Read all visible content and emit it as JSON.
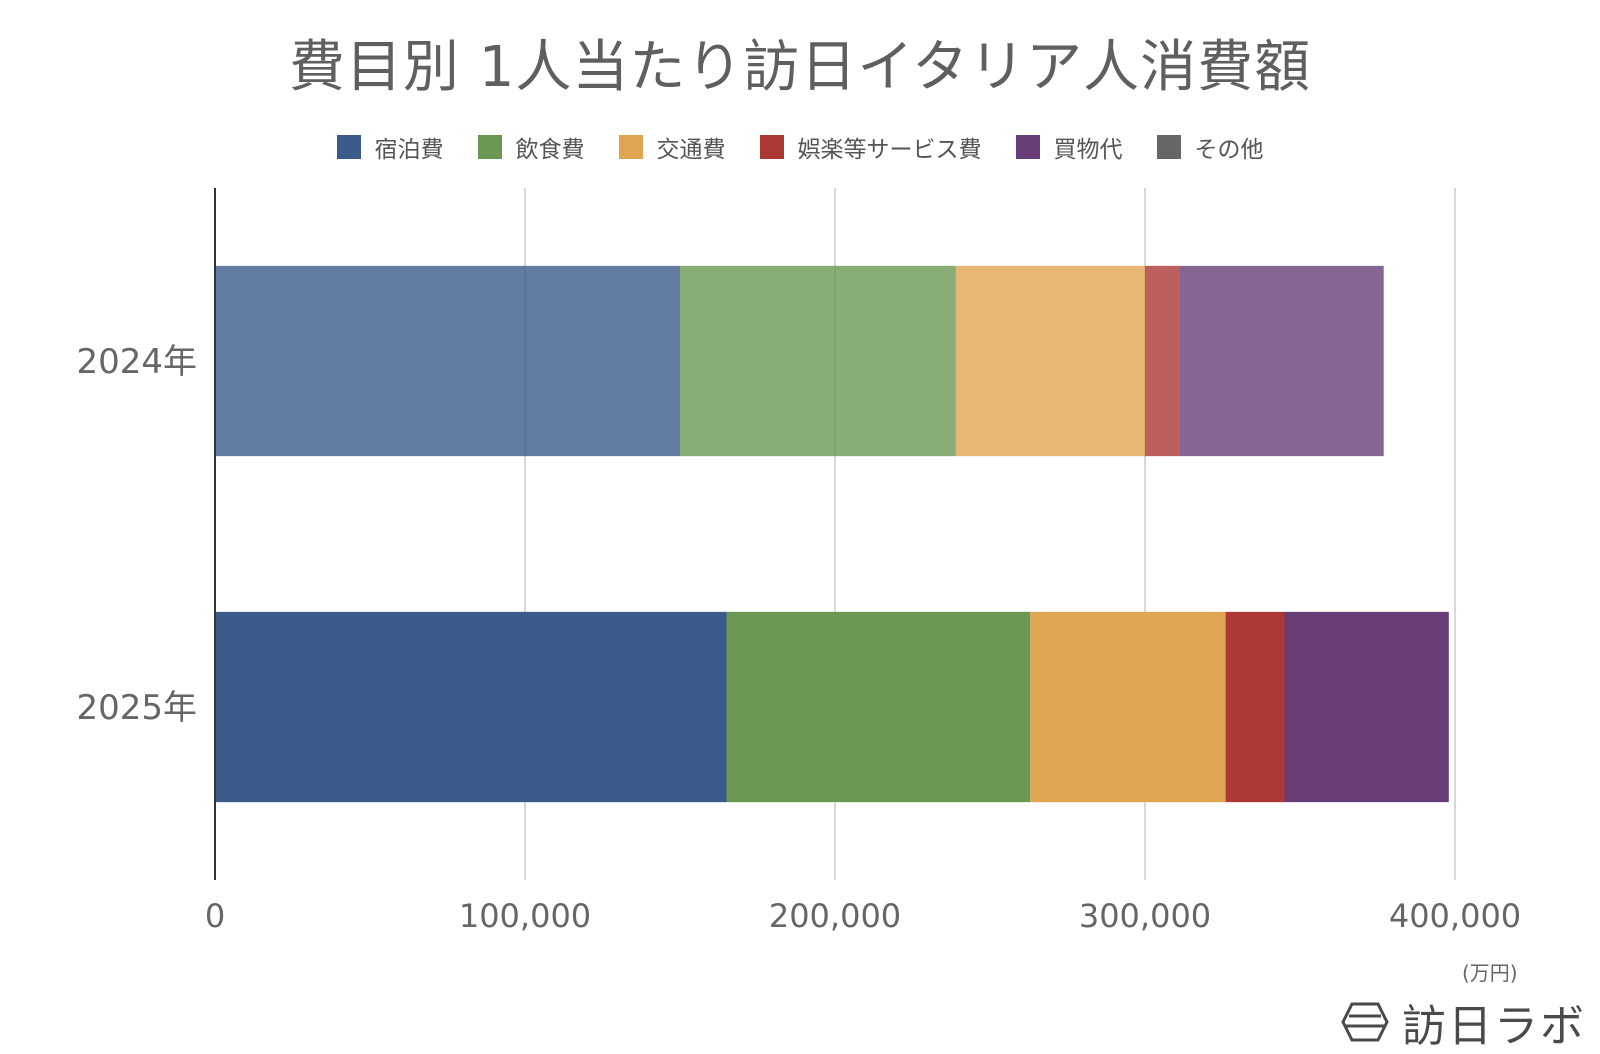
{
  "title": "費目別 1人当たり訪日イタリア人消費額",
  "unit": "(万円)",
  "brand": {
    "name": "訪日ラボ",
    "logo_icon": "hexagon-logo-icon"
  },
  "chart_data": {
    "type": "bar",
    "orientation": "horizontal",
    "stacked": true,
    "title": "費目別 1人当たり訪日イタリア人消費額",
    "categories": [
      "2024年",
      "2025年"
    ],
    "xlim": [
      0,
      400000
    ],
    "xticks": [
      0,
      100000,
      200000,
      300000,
      400000
    ],
    "xtick_labels": [
      "0",
      "100,000",
      "200,000",
      "300,000",
      "400,000"
    ],
    "grid": true,
    "legend_position": "top",
    "series": [
      {
        "name": "宿泊費",
        "color": "#3a5a8a",
        "values": [
          150000,
          165000
        ]
      },
      {
        "name": "飲食費",
        "color": "#6a9752",
        "values": [
          89000,
          98000
        ]
      },
      {
        "name": "交通費",
        "color": "#dfa550",
        "values": [
          61000,
          63000
        ]
      },
      {
        "name": "娯楽等サービス費",
        "color": "#ab3834",
        "values": [
          11000,
          19000
        ]
      },
      {
        "name": "買物代",
        "color": "#673e78",
        "values": [
          66000,
          53000
        ]
      },
      {
        "name": "その他",
        "color": "#666666",
        "values": [
          0,
          0
        ]
      }
    ],
    "category_opacity": [
      0.8,
      1.0
    ]
  }
}
